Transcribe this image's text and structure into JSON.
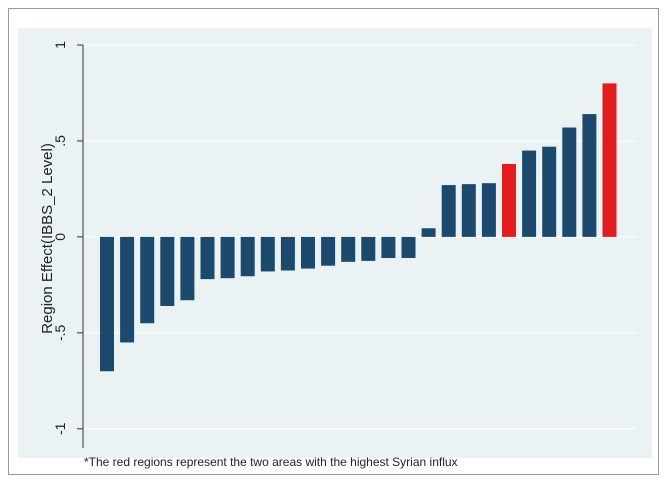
{
  "chart_data": {
    "type": "bar",
    "title": "",
    "xlabel": "",
    "ylabel": "Region Effect(IBBS_2 Level)",
    "ylim": [
      -1.1,
      1.0
    ],
    "yticks": [
      1,
      0.5,
      0,
      -0.5,
      -1
    ],
    "ytick_labels": [
      "1",
      ".5",
      "0",
      "-.5",
      "-1"
    ],
    "grid": true,
    "note": "*The red regions represent the two areas with the highest Syrian influx",
    "colors": {
      "default": "#1b4a6e",
      "highlight": "#e31d1f",
      "plot_bg": "#eaf2f3",
      "grid": "#ffffff"
    },
    "values": [
      -0.7,
      -0.55,
      -0.45,
      -0.36,
      -0.33,
      -0.22,
      -0.215,
      -0.205,
      -0.18,
      -0.175,
      -0.165,
      -0.15,
      -0.13,
      -0.125,
      -0.11,
      -0.11,
      0.045,
      0.27,
      0.275,
      0.28,
      0.38,
      0.45,
      0.47,
      0.57,
      0.64,
      0.8
    ],
    "highlighted": [
      false,
      false,
      false,
      false,
      false,
      false,
      false,
      false,
      false,
      false,
      false,
      false,
      false,
      false,
      false,
      false,
      false,
      false,
      false,
      false,
      true,
      false,
      false,
      false,
      false,
      true
    ]
  }
}
